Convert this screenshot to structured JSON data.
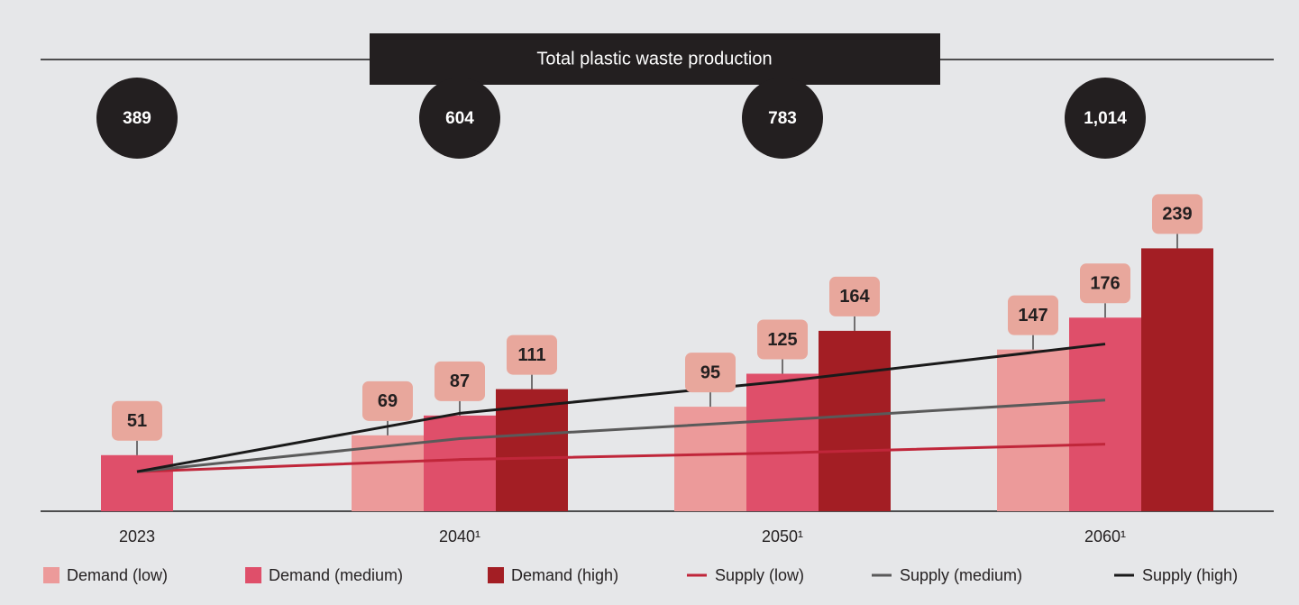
{
  "chart_data": {
    "type": "bar",
    "title": "Total plastic waste production",
    "categories": [
      "2023",
      "2040¹",
      "2050¹",
      "2060¹"
    ],
    "totals": {
      "values": [
        389,
        604,
        783,
        1014
      ],
      "value_labels": [
        "389",
        "604",
        "783",
        "1,014"
      ]
    },
    "ylim": [
      0,
      250
    ],
    "series": [
      {
        "name": "Demand (low)",
        "type": "bar",
        "color": "#ec9a9a",
        "values": [
          null,
          69,
          95,
          147
        ]
      },
      {
        "name": "Demand (medium)",
        "type": "bar",
        "color": "#df4f6a",
        "values": [
          51,
          87,
          125,
          176
        ]
      },
      {
        "name": "Demand (high)",
        "type": "bar",
        "color": "#a31e24",
        "values": [
          null,
          111,
          164,
          239
        ]
      },
      {
        "name": "Supply (low)",
        "type": "line",
        "color": "#c0263a",
        "values": [
          36,
          47,
          53,
          61
        ]
      },
      {
        "name": "Supply (medium)",
        "type": "line",
        "color": "#5a5a5a",
        "values": [
          36,
          66,
          83,
          101
        ]
      },
      {
        "name": "Supply (high)",
        "type": "line",
        "color": "#1a1a1a",
        "values": [
          36,
          89,
          118,
          152
        ]
      }
    ]
  }
}
